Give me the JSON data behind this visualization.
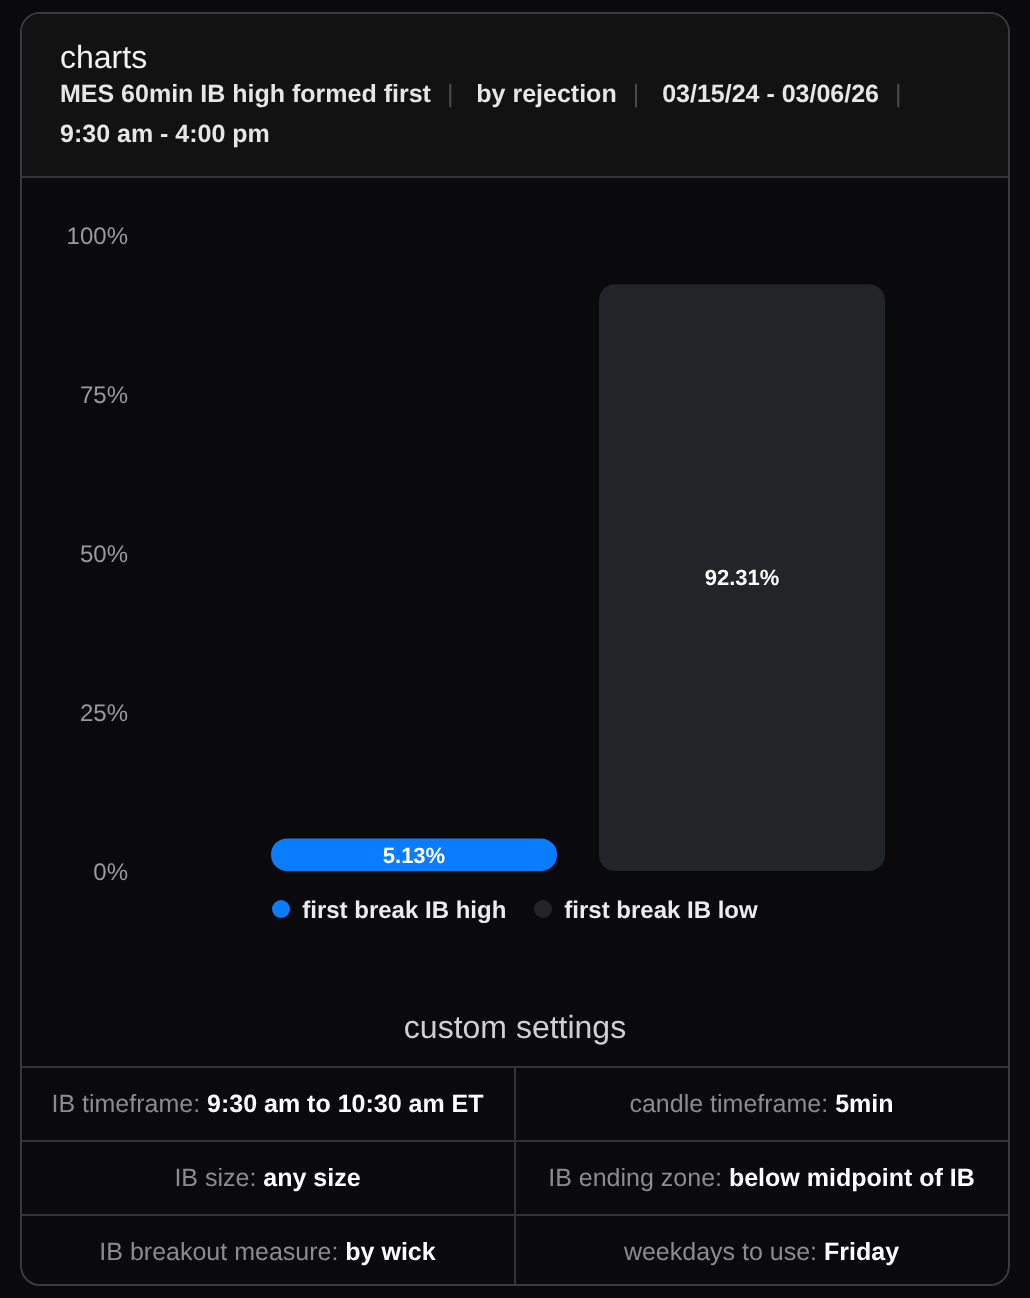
{
  "chart_data": [
    {
      "type": "bar",
      "title": "charts",
      "subtitle": "MES 60min IB high formed first | by rejection | 03/15/24 - 03/06/26 | 9:30 am - 4:00 pm",
      "categories": [
        null,
        null
      ],
      "series": [
        {
          "name": "first break IB high",
          "color": "#0a7cff",
          "values": [
            5.13,
            null
          ],
          "value_labels": [
            "5.13%",
            null
          ]
        },
        {
          "name": "first break IB low",
          "color": "#232428",
          "values": [
            null,
            92.31
          ],
          "value_labels": [
            null,
            "92.31%"
          ]
        }
      ],
      "stacked": true,
      "ylim": [
        0,
        100
      ],
      "yticks": [
        {
          "value": 0,
          "label": "0%"
        },
        {
          "value": 25,
          "label": "25%"
        },
        {
          "value": 50,
          "label": "50%"
        },
        {
          "value": 75,
          "label": "75%"
        },
        {
          "value": 100,
          "label": "100%"
        }
      ],
      "grid": false,
      "legend": "bottom",
      "tick_labels": "y"
    },
    {
      "type": "other",
      "title": "custom settings",
      "annotations": [
        "IB timeframe: 9:30 am to 10:30 am ET",
        "candle timeframe: 5min",
        "IB size: any size",
        "IB ending zone: below midpoint of IB",
        "IB breakout measure: by wick",
        "weekdays to use: Friday"
      ]
    }
  ]
}
